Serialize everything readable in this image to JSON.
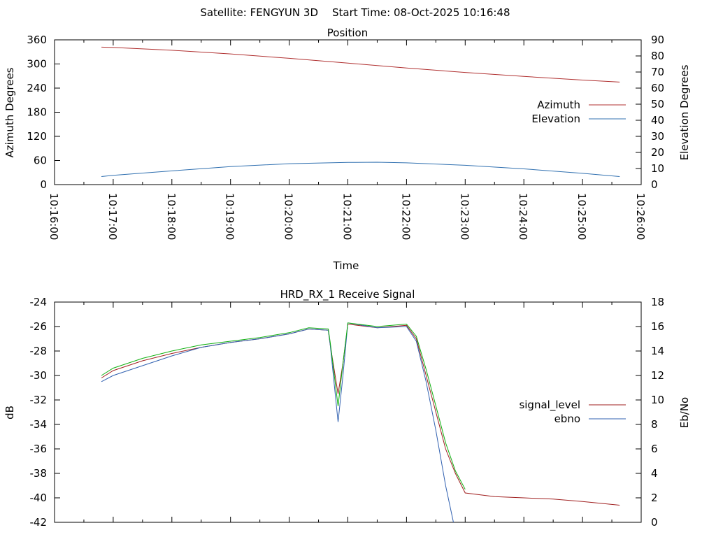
{
  "header": {
    "satellite": "Satellite: FENGYUN 3D",
    "start_time": "Start Time: 08-Oct-2025 10:16:48"
  },
  "chart_data": [
    {
      "type": "line",
      "title": "Position",
      "xlabel": "Time",
      "ylabel": "Azimuth Degrees",
      "y2label": "Elevation Degrees",
      "x_tick_labels": [
        "10:16:00",
        "10:17:00",
        "10:18:00",
        "10:19:00",
        "10:20:00",
        "10:21:00",
        "10:22:00",
        "10:23:00",
        "10:24:00",
        "10:25:00",
        "10:26:00"
      ],
      "xlim": [
        "10:16:00",
        "10:26:00"
      ],
      "ylim": [
        0,
        360
      ],
      "y_ticks": [
        0,
        60,
        120,
        180,
        240,
        300,
        360
      ],
      "y2lim": [
        0,
        90
      ],
      "y2_ticks": [
        0,
        10,
        20,
        30,
        40,
        50,
        60,
        70,
        80,
        90
      ],
      "legend_position": "right",
      "series": [
        {
          "name": "Azimuth",
          "axis": "y",
          "color": "#b03030",
          "x": [
            "10:16:48",
            "10:17:00",
            "10:18:00",
            "10:19:00",
            "10:20:00",
            "10:21:00",
            "10:22:00",
            "10:23:00",
            "10:24:00",
            "10:25:00",
            "10:25:38"
          ],
          "values": [
            342,
            341,
            334,
            325,
            314,
            302,
            290,
            279,
            269,
            260,
            255
          ]
        },
        {
          "name": "Elevation",
          "axis": "y2",
          "color": "#3070b0",
          "x": [
            "10:16:48",
            "10:17:00",
            "10:18:00",
            "10:19:00",
            "10:20:00",
            "10:21:00",
            "10:21:30",
            "10:22:00",
            "10:23:00",
            "10:24:00",
            "10:25:00",
            "10:25:38"
          ],
          "values": [
            5,
            5.8,
            8.5,
            11.2,
            13,
            13.8,
            13.9,
            13.5,
            12,
            9.8,
            7,
            5
          ]
        }
      ]
    },
    {
      "type": "line",
      "title": "HRD_RX_1 Receive Signal",
      "ylabel": "dB",
      "y2label": "Eb/No",
      "ylim": [
        -42,
        -24
      ],
      "y_ticks": [
        -42,
        -40,
        -38,
        -36,
        -34,
        -32,
        -30,
        -28,
        -26,
        -24
      ],
      "y2lim": [
        0,
        18
      ],
      "y2_ticks": [
        0,
        2,
        4,
        6,
        8,
        10,
        12,
        14,
        16,
        18
      ],
      "legend_position": "right",
      "series": [
        {
          "name": "signal_level",
          "axis": "y",
          "color": "#a02020",
          "x": [
            "10:16:48",
            "10:17:00",
            "10:17:30",
            "10:18:00",
            "10:18:30",
            "10:19:00",
            "10:19:30",
            "10:20:00",
            "10:20:20",
            "10:20:40",
            "10:20:42",
            "10:20:50",
            "10:20:55",
            "10:21:00",
            "10:21:30",
            "10:22:00",
            "10:22:10",
            "10:22:20",
            "10:22:30",
            "10:22:40",
            "10:22:50",
            "10:23:00",
            "10:23:30",
            "10:24:00",
            "10:24:30",
            "10:25:00",
            "10:25:38"
          ],
          "values": [
            -30.2,
            -29.6,
            -28.8,
            -28.2,
            -27.7,
            -27.3,
            -27.0,
            -26.6,
            -26.2,
            -26.3,
            -27.5,
            -31.5,
            -29.0,
            -25.8,
            -26.1,
            -25.9,
            -27.0,
            -30.0,
            -33.0,
            -36.0,
            -38.0,
            -39.6,
            -39.9,
            -40.0,
            -40.1,
            -40.3,
            -40.6
          ]
        },
        {
          "name": "ebno",
          "axis": "y2",
          "color": "#3060b0",
          "x": [
            "10:16:48",
            "10:17:00",
            "10:17:30",
            "10:18:00",
            "10:18:30",
            "10:19:00",
            "10:19:30",
            "10:20:00",
            "10:20:20",
            "10:20:40",
            "10:20:42",
            "10:20:50",
            "10:20:55",
            "10:21:00",
            "10:21:30",
            "10:22:00",
            "10:22:10",
            "10:22:20",
            "10:22:30",
            "10:22:40",
            "10:22:48"
          ],
          "values": [
            11.5,
            12.0,
            12.8,
            13.6,
            14.3,
            14.7,
            15.0,
            15.4,
            15.8,
            15.7,
            14.5,
            8.2,
            12.0,
            16.3,
            15.9,
            16.0,
            14.8,
            11.5,
            7.5,
            3.0,
            0
          ]
        },
        {
          "name": "",
          "axis": "y",
          "color": "#10b010",
          "x": [
            "10:16:48",
            "10:17:00",
            "10:17:30",
            "10:18:00",
            "10:18:30",
            "10:19:00",
            "10:19:30",
            "10:20:00",
            "10:20:20",
            "10:20:40",
            "10:20:42",
            "10:20:50",
            "10:20:55",
            "10:21:00",
            "10:21:30",
            "10:22:00",
            "10:22:10",
            "10:22:20",
            "10:22:30",
            "10:22:40",
            "10:22:50",
            "10:23:00"
          ],
          "values": [
            -30.0,
            -29.4,
            -28.6,
            -28.0,
            -27.5,
            -27.2,
            -26.9,
            -26.5,
            -26.1,
            -26.2,
            -27.3,
            -32.5,
            -29.0,
            -25.7,
            -26.0,
            -25.8,
            -26.8,
            -29.5,
            -32.5,
            -35.5,
            -37.8,
            -39.3
          ]
        }
      ]
    }
  ]
}
